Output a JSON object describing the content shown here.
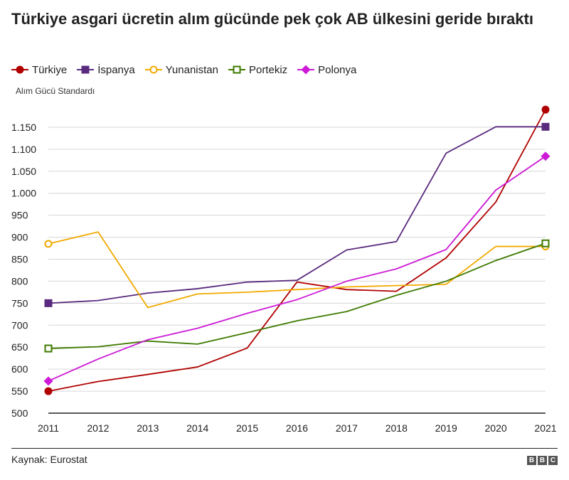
{
  "title": "Türkiye asgari ücretin alım gücünde pek çok AB ülkesini geride bıraktı",
  "source": "Kaynak: Eurostat",
  "logo": [
    "B",
    "B",
    "C"
  ],
  "chart_data": {
    "type": "line",
    "title": "Türkiye asgari ücretin alım gücünde pek çok AB ülkesini geride bıraktı",
    "ylabel": "Alım Gücü Standardı",
    "xlabel": "",
    "x": [
      2011,
      2012,
      2013,
      2014,
      2015,
      2016,
      2017,
      2018,
      2019,
      2020,
      2021
    ],
    "ylim": [
      500,
      1200
    ],
    "yticks": [
      500,
      550,
      600,
      650,
      700,
      750,
      800,
      850,
      900,
      950,
      1000,
      1050,
      1100,
      1150
    ],
    "ytick_labels": [
      "500",
      "550",
      "600",
      "650",
      "700",
      "750",
      "800",
      "850",
      "900",
      "950",
      "1.000",
      "1.050",
      "1.100",
      "1.150"
    ],
    "grid": true,
    "legend_position": "top-left",
    "series": [
      {
        "name": "Türkiye",
        "color": "#b00000",
        "marker": "circle-filled",
        "values": [
          550,
          572,
          588,
          605,
          648,
          798,
          781,
          777,
          853,
          980,
          1190
        ]
      },
      {
        "name": "İspanya",
        "color": "#5a2a7e",
        "marker": "square-filled",
        "values": [
          750,
          756,
          773,
          783,
          798,
          802,
          871,
          890,
          1091,
          1151,
          1151
        ]
      },
      {
        "name": "Yunanistan",
        "color": "#f2a900",
        "marker": "circle-open",
        "values": [
          885,
          912,
          740,
          771,
          775,
          781,
          787,
          790,
          793,
          879,
          879
        ]
      },
      {
        "name": "Portekiz",
        "color": "#3f7a00",
        "marker": "square-open",
        "values": [
          647,
          651,
          664,
          657,
          683,
          710,
          731,
          768,
          800,
          847,
          886
        ]
      },
      {
        "name": "Polonya",
        "color": "#cc1ad6",
        "marker": "diamond-filled",
        "values": [
          573,
          623,
          667,
          693,
          727,
          758,
          800,
          828,
          872,
          1007,
          1084
        ]
      }
    ]
  }
}
